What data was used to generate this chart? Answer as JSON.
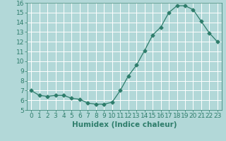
{
  "x": [
    0,
    1,
    2,
    3,
    4,
    5,
    6,
    7,
    8,
    9,
    10,
    11,
    12,
    13,
    14,
    15,
    16,
    17,
    18,
    19,
    20,
    21,
    22,
    23
  ],
  "y": [
    7.0,
    6.5,
    6.4,
    6.5,
    6.5,
    6.2,
    6.1,
    5.7,
    5.6,
    5.6,
    5.8,
    7.0,
    8.5,
    9.6,
    11.1,
    12.7,
    13.5,
    15.0,
    15.7,
    15.7,
    15.3,
    14.1,
    12.9,
    12.0
  ],
  "line_color": "#2E7D6B",
  "marker": "D",
  "marker_size": 2.5,
  "bg_color": "#B2D8D8",
  "grid_color": "#ffffff",
  "xlabel": "Humidex (Indice chaleur)",
  "ylim": [
    5,
    16
  ],
  "xlim": [
    -0.5,
    23.5
  ],
  "yticks": [
    5,
    6,
    7,
    8,
    9,
    10,
    11,
    12,
    13,
    14,
    15,
    16
  ],
  "xticks": [
    0,
    1,
    2,
    3,
    4,
    5,
    6,
    7,
    8,
    9,
    10,
    11,
    12,
    13,
    14,
    15,
    16,
    17,
    18,
    19,
    20,
    21,
    22,
    23
  ],
  "tick_color": "#2E7D6B",
  "label_color": "#2E7D6B",
  "font_size": 6.5,
  "xlabel_fontsize": 7.5
}
